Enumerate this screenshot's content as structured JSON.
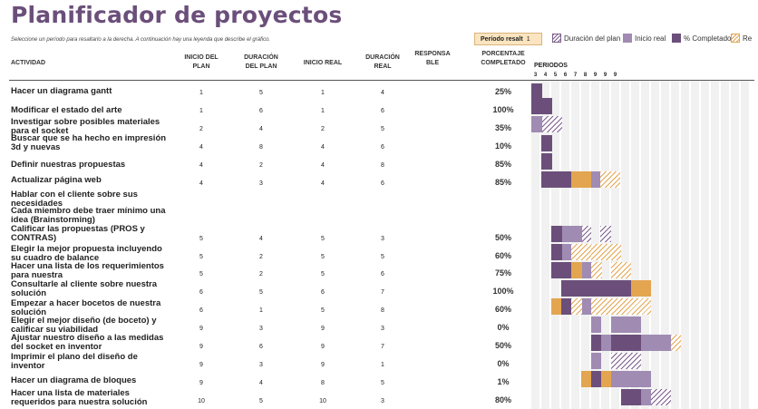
{
  "title": "Planificador de proyectos",
  "subtitle": "Seleccione un período para resaltarlo a la derecha. A continuación hay una leyenda que describe el gráfico.",
  "period_highlight": {
    "label": "Período resalt",
    "value": "1"
  },
  "legend": [
    {
      "label": "Duración del plan",
      "kind": "plan"
    },
    {
      "label": "Inicio real",
      "kind": "real"
    },
    {
      "label": "% Completado",
      "kind": "comp"
    },
    {
      "label": "Re",
      "kind": "beyond"
    }
  ],
  "headers": {
    "actividad": "ACTIVIDAD",
    "inicio_plan": "INICIO DEL PLAN",
    "duracion_plan": "DURACIÓN DEL PLAN",
    "inicio_real": "INICIO REAL",
    "duracion_real": "DURACIÓN REAL",
    "responsable": "RESPONSABLE",
    "porcentaje": "PORCENTAJE COMPLETADO",
    "periodos": "PERIODOS"
  },
  "period_numbers": [
    "3",
    "4",
    "5",
    "6",
    "7",
    "8",
    "9",
    "9",
    "9"
  ],
  "colors": {
    "complete": "#6b4f7a",
    "real": "#a08bb3",
    "plan": "#7c5e8d",
    "beyond": "#e3a550",
    "title": "#6b4f7a"
  },
  "rows": [
    {
      "activity": "Hacer un diagrama gantt",
      "ip": "1",
      "dp": "5",
      "ir": "1",
      "dr": "4",
      "pct": "25%"
    },
    {
      "activity": "Modificar el estado del arte",
      "ip": "1",
      "dp": "6",
      "ir": "1",
      "dr": "6",
      "pct": "100%"
    },
    {
      "activity": "Investigar sobre posibles materiales para el socket",
      "ip": "2",
      "dp": "4",
      "ir": "2",
      "dr": "5",
      "pct": "35%"
    },
    {
      "activity": "Buscar que se ha hecho en impresión 3d y nuevas",
      "ip": "4",
      "dp": "8",
      "ir": "4",
      "dr": "6",
      "pct": "10%"
    },
    {
      "activity": "Definir nuestras propuestas",
      "ip": "4",
      "dp": "2",
      "ir": "4",
      "dr": "8",
      "pct": "85%"
    },
    {
      "activity": "Actualizar página web",
      "ip": "4",
      "dp": "3",
      "ir": "4",
      "dr": "6",
      "pct": "85%"
    },
    {
      "activity": "Hablar con el cliente sobre sus necesidades",
      "ip": "",
      "dp": "",
      "ir": "",
      "dr": "",
      "pct": ""
    },
    {
      "activity": "Cada miembro debe traer mínimo una idea (Brainstorming)",
      "ip": "",
      "dp": "",
      "ir": "",
      "dr": "",
      "pct": ""
    },
    {
      "activity": "Calificar las propuestas (PROS y CONTRAS)",
      "ip": "5",
      "dp": "4",
      "ir": "5",
      "dr": "3",
      "pct": "50%"
    },
    {
      "activity": "Elegir la mejor propuesta incluyendo su cuadro de balance",
      "ip": "5",
      "dp": "2",
      "ir": "5",
      "dr": "5",
      "pct": "60%"
    },
    {
      "activity": "Hacer una lista de los requerimientos para nuestra",
      "ip": "5",
      "dp": "2",
      "ir": "5",
      "dr": "6",
      "pct": "75%"
    },
    {
      "activity": "Consultarle al cliente sobre nuestra solución",
      "ip": "6",
      "dp": "5",
      "ir": "6",
      "dr": "7",
      "pct": "100%"
    },
    {
      "activity": "Empezar a hacer bocetos de nuestra solución",
      "ip": "6",
      "dp": "1",
      "ir": "5",
      "dr": "8",
      "pct": "60%"
    },
    {
      "activity": "Elegir el mejor diseño (de boceto) y calificar su viabilidad",
      "ip": "9",
      "dp": "3",
      "ir": "9",
      "dr": "3",
      "pct": "0%"
    },
    {
      "activity": "Ajustar nuestro diseño a las medidas del socket en inventor",
      "ip": "9",
      "dp": "6",
      "ir": "9",
      "dr": "7",
      "pct": "50%"
    },
    {
      "activity": "Imprimir el plano del diseño de inventor",
      "ip": "9",
      "dp": "3",
      "ir": "9",
      "dr": "1",
      "pct": "0%"
    },
    {
      "activity": "Hacer un diagrama de bloques",
      "ip": "9",
      "dp": "4",
      "ir": "8",
      "dr": "5",
      "pct": "1%"
    },
    {
      "activity": "Hacer una lista de materiales requeridos para nuestra solución",
      "ip": "10",
      "dp": "5",
      "ir": "10",
      "dr": "3",
      "pct": "80%"
    }
  ]
}
